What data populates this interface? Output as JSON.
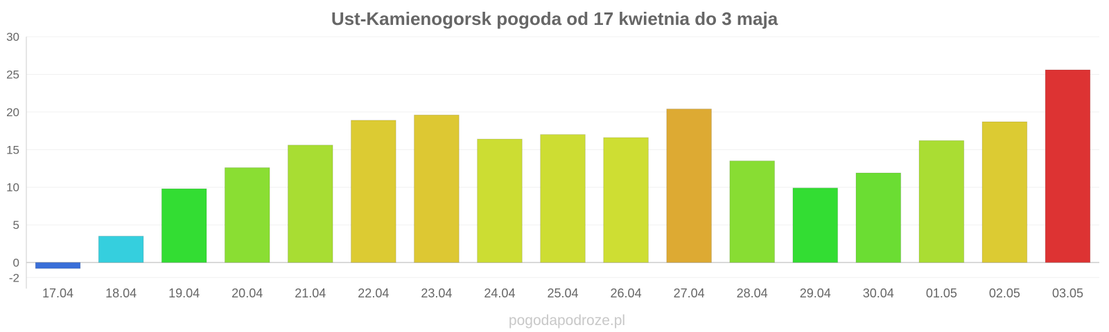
{
  "chart_data": {
    "type": "bar",
    "title": "Ust-Kamienogorsk pogoda od 17 kwietnia do 3 maja",
    "xlabel": "",
    "ylabel": "",
    "ylim": [
      -2,
      30
    ],
    "yticks": [
      -2,
      0,
      5,
      10,
      15,
      20,
      25,
      30
    ],
    "grid": true,
    "categories": [
      "17.04",
      "18.04",
      "19.04",
      "20.04",
      "21.04",
      "22.04",
      "23.04",
      "24.04",
      "25.04",
      "26.04",
      "27.04",
      "28.04",
      "29.04",
      "30.04",
      "01.05",
      "02.05",
      "03.05"
    ],
    "values": [
      -0.8,
      3.5,
      9.8,
      12.6,
      15.6,
      18.9,
      19.6,
      16.4,
      17.0,
      16.6,
      20.4,
      13.5,
      9.9,
      11.9,
      16.2,
      18.7,
      25.6
    ],
    "colors": [
      "#3a6fd8",
      "#35cfde",
      "#33dd33",
      "#8ade33",
      "#a8dd33",
      "#dccb33",
      "#ddc833",
      "#ccdd33",
      "#cddd33",
      "#cede33",
      "#ddaa33",
      "#88dd33",
      "#33dd33",
      "#6bdd33",
      "#aadd33",
      "#dccb33",
      "#dd3333"
    ]
  },
  "watermark": "pogodapodroze.pl"
}
